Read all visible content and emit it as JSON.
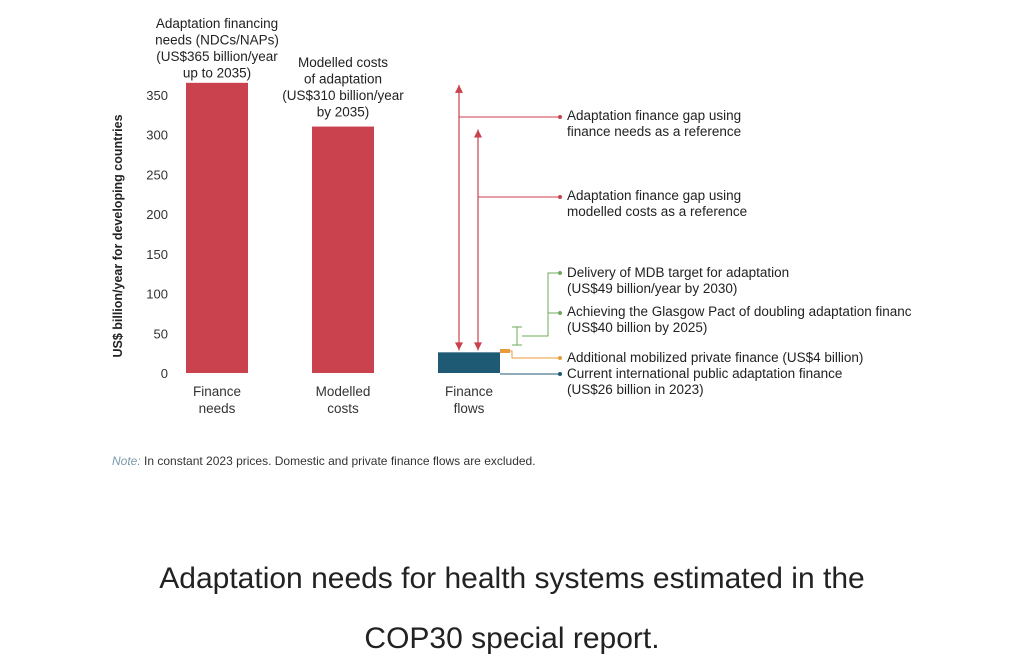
{
  "chart_data": {
    "type": "bar",
    "ylabel": "US$ billion/year for developing countries",
    "ylim": [
      0,
      350
    ],
    "yticks": [
      "0",
      "50",
      "100",
      "150",
      "200",
      "250",
      "300",
      "350"
    ],
    "categories": [
      "Finance\nneeds",
      "Modelled\ncosts",
      "Finance\nflows"
    ],
    "values": [
      365,
      310,
      26
    ],
    "bar_colors": [
      "#c9424d",
      "#c9424d",
      "#1f5a74"
    ],
    "bar_labels": [
      "Adaptation financing\nneeds (NDCs/NAPs)\n(US$365 billion/year\nup to 2035)",
      "Modelled costs\nof adaptation\n(US$310 billion/year\nby 2035)",
      ""
    ],
    "finance_flow_components": [
      {
        "name": "Current international public adaptation finance",
        "value": 26
      },
      {
        "name": "Additional mobilized private finance",
        "value": 4
      },
      {
        "name": "Achieving the Glasgow Pact of doubling adaptation finance",
        "value": 40
      },
      {
        "name": "Delivery of MDB target for adaptation",
        "value": 49
      }
    ],
    "annotations": [
      {
        "text": "Adaptation finance gap using\nfinance needs as a reference",
        "color": "#c9424d"
      },
      {
        "text": "Adaptation finance gap using\nmodelled costs as a reference",
        "color": "#c9424d"
      },
      {
        "text": "Delivery of MDB target for adaptation\n(US$49 billion/year by 2030)",
        "color": "#6cab5b"
      },
      {
        "text": "Achieving the Glasgow Pact of doubling adaptation financ\n(US$40 billion by 2025)",
        "color": "#6cab5b"
      },
      {
        "text": "Additional mobilized private finance (US$4 billion)",
        "color": "#e89b3a"
      },
      {
        "text": "Current international public adaptation finance\n(US$26 billion in 2023)",
        "color": "#1f5a74"
      }
    ],
    "note_label": "Note:",
    "note_text": "In constant 2023 prices. Domestic and private finance flows are excluded."
  },
  "caption": {
    "line1": "Adaptation needs for health systems estimated in the",
    "line2": "COP30 special report."
  }
}
